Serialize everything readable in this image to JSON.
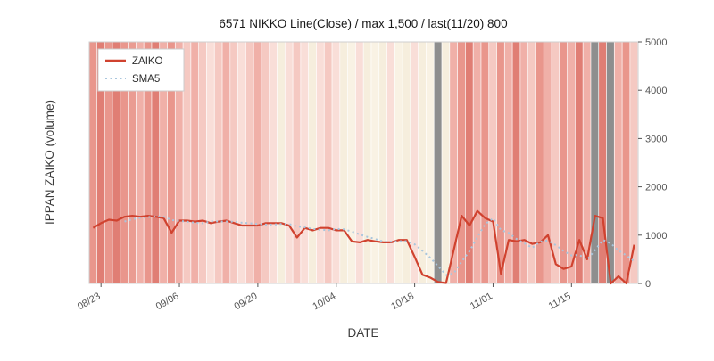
{
  "chart_data": {
    "type": "line",
    "title": "6571 NIKKO Line(Close) / max 1,500 / last(11/20) 800",
    "xlabel": "DATE",
    "ylabel": "IPPAN ZAIKO (volume)",
    "ylim": [
      0,
      5000
    ],
    "y_ticks": [
      0,
      1000,
      2000,
      3000,
      4000,
      5000
    ],
    "x_ticks": [
      {
        "index": 1,
        "label": "08/23"
      },
      {
        "index": 11,
        "label": "09/06"
      },
      {
        "index": 21,
        "label": "09/20"
      },
      {
        "index": 31,
        "label": "10/04"
      },
      {
        "index": 41,
        "label": "10/18"
      },
      {
        "index": 51,
        "label": "11/01"
      },
      {
        "index": 61,
        "label": "11/15"
      }
    ],
    "legend": {
      "position": "upper-left",
      "entries": [
        "ZAIKO",
        "SMA5"
      ]
    },
    "series": [
      {
        "name": "ZAIKO",
        "color": "#d0422f",
        "style": "solid",
        "values": [
          1150,
          1250,
          1320,
          1300,
          1380,
          1400,
          1380,
          1400,
          1380,
          1350,
          1050,
          1300,
          1300,
          1280,
          1300,
          1250,
          1280,
          1300,
          1250,
          1200,
          1200,
          1200,
          1250,
          1250,
          1250,
          1200,
          950,
          1150,
          1100,
          1150,
          1150,
          1100,
          1100,
          870,
          850,
          900,
          870,
          850,
          850,
          900,
          900,
          550,
          180,
          120,
          30,
          10,
          700,
          1400,
          1200,
          1500,
          1350,
          1280,
          200,
          900,
          870,
          900,
          820,
          850,
          1000,
          400,
          300,
          350,
          900,
          500,
          1400,
          1350,
          0,
          150,
          0,
          800
        ]
      },
      {
        "name": "SMA5",
        "color": "#a9c6dd",
        "style": "dotted",
        "derived": "5-point moving average of ZAIKO"
      }
    ],
    "background_bands": {
      "colors": [
        "#e9968c",
        "#e07e74",
        "#e9968c",
        "#e07e74",
        "#e9968c",
        "#ea9c92",
        "#f0b0a8",
        "#e9968c",
        "#e07e74",
        "#f0b0a8",
        "#e9968c",
        "#f0b0a8",
        "#f5c9c2",
        "#f0b0a8",
        "#f5c9c2",
        "#f9ded8",
        "#f5c9c2",
        "#f0b0a8",
        "#f5c9c2",
        "#f9ded8",
        "#f5c9c2",
        "#f0b0a8",
        "#f5c9c2",
        "#f9ded8",
        "#f6eedd",
        "#f9ded8",
        "#f5c9c2",
        "#f9ded8",
        "#f6eedd",
        "#f9ded8",
        "#f5c9c2",
        "#f9ded8",
        "#f6eedd",
        "#f9f2e4",
        "#f9ded8",
        "#f6eedd",
        "#f9f2e4",
        "#f6eedd",
        "#f9ded8",
        "#f9f2e4",
        "#f6eedd",
        "#f9ded8",
        "#f6eedd",
        "#f9f2e4",
        "#8e8e8e",
        "#f6eedd",
        "#f0b0a8",
        "#e9968c",
        "#e07e74",
        "#f0b0a8",
        "#e9968c",
        "#f5c9c2",
        "#e9968c",
        "#f0b0a8",
        "#e07e74",
        "#f0b0a8",
        "#f5c9c2",
        "#e9968c",
        "#f0b0a8",
        "#f5c9c2",
        "#e9968c",
        "#f0b0a8",
        "#e07e74",
        "#f0b0a8",
        "#8e8e8e",
        "#e07e74",
        "#8e8e8e",
        "#f0b0a8",
        "#e9968c",
        "#f5c9c2"
      ]
    }
  }
}
